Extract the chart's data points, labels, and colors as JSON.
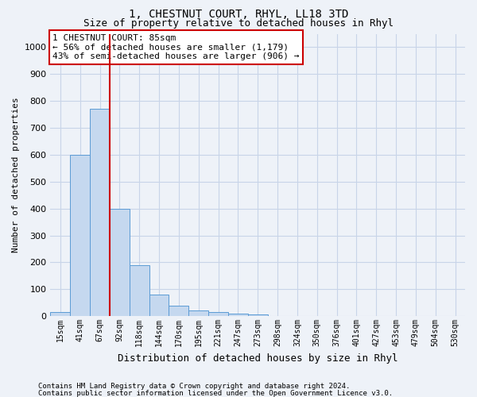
{
  "title1": "1, CHESTNUT COURT, RHYL, LL18 3TD",
  "title2": "Size of property relative to detached houses in Rhyl",
  "xlabel": "Distribution of detached houses by size in Rhyl",
  "ylabel": "Number of detached properties",
  "footnote1": "Contains HM Land Registry data © Crown copyright and database right 2024.",
  "footnote2": "Contains public sector information licensed under the Open Government Licence v3.0.",
  "bin_labels": [
    "15sqm",
    "41sqm",
    "67sqm",
    "92sqm",
    "118sqm",
    "144sqm",
    "170sqm",
    "195sqm",
    "221sqm",
    "247sqm",
    "273sqm",
    "298sqm",
    "324sqm",
    "350sqm",
    "376sqm",
    "401sqm",
    "427sqm",
    "453sqm",
    "479sqm",
    "504sqm",
    "530sqm"
  ],
  "bar_heights": [
    15,
    600,
    770,
    400,
    190,
    80,
    40,
    20,
    15,
    10,
    5,
    0,
    0,
    0,
    0,
    0,
    0,
    0,
    0,
    0,
    0
  ],
  "n_bins": 21,
  "bar_color": "#c5d8ef",
  "bar_edge_color": "#5b9bd5",
  "grid_color": "#c8d4e8",
  "vline_x": 2.5,
  "vline_color": "#cc0000",
  "annotation_text": "1 CHESTNUT COURT: 85sqm\n← 56% of detached houses are smaller (1,179)\n43% of semi-detached houses are larger (906) →",
  "annotation_box_color": "#cc0000",
  "ylim": [
    0,
    1050
  ],
  "yticks": [
    0,
    100,
    200,
    300,
    400,
    500,
    600,
    700,
    800,
    900,
    1000
  ],
  "background_color": "#eef2f8",
  "title1_fontsize": 10,
  "title2_fontsize": 9,
  "xlabel_fontsize": 9,
  "ylabel_fontsize": 8,
  "tick_fontsize": 8,
  "xtick_fontsize": 7,
  "annot_fontsize": 8,
  "footnote_fontsize": 6.5
}
